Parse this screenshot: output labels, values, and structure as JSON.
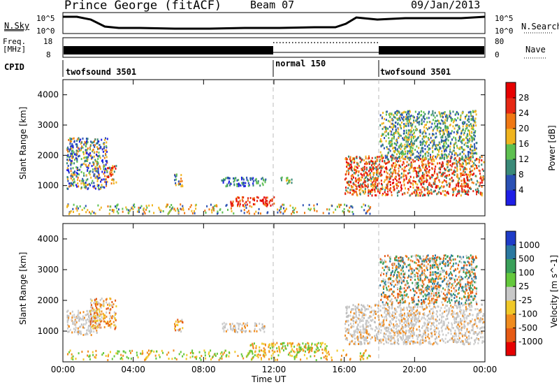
{
  "header": {
    "station": "Prince George (fitACF)",
    "beam": "Beam 07",
    "date": "09/Jan/2013"
  },
  "small_panels": {
    "nsky": {
      "label": "N.Sky",
      "tick_top": "10^5",
      "tick_bottom": "10^0",
      "right_tick_top": "10^5",
      "right_tick_bottom": "10^0",
      "right_label": "N.Search"
    },
    "freq": {
      "label_line1": "Freq.",
      "label_line2": "[MHz]",
      "tick_top": "18",
      "tick_bottom": "8",
      "right_tick_top": "80",
      "right_tick_bottom": "0",
      "right_label": "Nave"
    },
    "cpid": {
      "label": "CPID",
      "segments": [
        "twofsound 3501",
        "normal 150",
        "twofsound 3501"
      ]
    }
  },
  "time_axis": {
    "label": "Time UT",
    "ticks": [
      "00:00",
      "04:00",
      "08:00",
      "12:00",
      "16:00",
      "20:00",
      "00:00"
    ]
  },
  "chart_data": [
    {
      "type": "heatmap",
      "title": "",
      "xlabel": "Time UT",
      "ylabel": "Slant Range [km]",
      "xlim": [
        0,
        24
      ],
      "ylim": [
        0,
        4500
      ],
      "yticks": [
        "1000",
        "2000",
        "3000",
        "4000"
      ],
      "colorbar": {
        "label": "Power [dB]",
        "ticks": [
          "4",
          "8",
          "12",
          "16",
          "20",
          "24",
          "28"
        ],
        "colors": [
          "#1e1ee6",
          "#2a50b4",
          "#3a8a78",
          "#5ec050",
          "#f0b41e",
          "#f07814",
          "#e62814",
          "#e60000"
        ]
      },
      "regions": [
        {
          "x": [
            0.2,
            2.5
          ],
          "y": [
            900,
            2600
          ],
          "level": "mixed-blue-orange"
        },
        {
          "x": [
            2.5,
            3.0
          ],
          "y": [
            1100,
            1700
          ],
          "level": "orange-red"
        },
        {
          "x": [
            6.3,
            6.8
          ],
          "y": [
            1000,
            1400
          ],
          "level": "mixed"
        },
        {
          "x": [
            9.0,
            11.5
          ],
          "y": [
            1000,
            1300
          ],
          "level": "blue-green"
        },
        {
          "x": [
            9.5,
            12.0
          ],
          "y": [
            350,
            650
          ],
          "level": "red"
        },
        {
          "x": [
            12.3,
            13.0
          ],
          "y": [
            1100,
            1300
          ],
          "level": "green"
        },
        {
          "x": [
            16.0,
            23.9
          ],
          "y": [
            700,
            2000
          ],
          "level": "orange-red"
        },
        {
          "x": [
            18.0,
            23.5
          ],
          "y": [
            1900,
            3500
          ],
          "level": "green-orange"
        }
      ]
    },
    {
      "type": "heatmap",
      "title": "",
      "xlabel": "Time UT",
      "ylabel": "Slant Range [km]",
      "xlim": [
        0,
        24
      ],
      "ylim": [
        0,
        4500
      ],
      "yticks": [
        "1000",
        "2000",
        "3000",
        "4000"
      ],
      "colorbar": {
        "label": "Velocity [m s^-1]",
        "ticks": [
          "1000",
          "500",
          "100",
          "25",
          "-25",
          "-100",
          "-500",
          "-1000"
        ],
        "colors": [
          "#1e3cc8",
          "#2a78a0",
          "#3aa05a",
          "#64c83c",
          "#c8c8c8",
          "#f0c828",
          "#f08c1e",
          "#e65a14",
          "#e60000"
        ]
      },
      "regions": [
        {
          "x": [
            0.2,
            2.0
          ],
          "y": [
            900,
            1700
          ],
          "level": "grey"
        },
        {
          "x": [
            1.5,
            3.0
          ],
          "y": [
            1100,
            2100
          ],
          "level": "orange"
        },
        {
          "x": [
            6.3,
            6.8
          ],
          "y": [
            1000,
            1400
          ],
          "level": "orange"
        },
        {
          "x": [
            9.0,
            11.5
          ],
          "y": [
            1000,
            1300
          ],
          "level": "grey"
        },
        {
          "x": [
            10.5,
            15.0
          ],
          "y": [
            350,
            650
          ],
          "level": "orange-yellow"
        },
        {
          "x": [
            16.0,
            23.9
          ],
          "y": [
            600,
            1900
          ],
          "level": "grey"
        },
        {
          "x": [
            18.0,
            23.5
          ],
          "y": [
            1900,
            3500
          ],
          "level": "green-orange"
        }
      ]
    }
  ]
}
